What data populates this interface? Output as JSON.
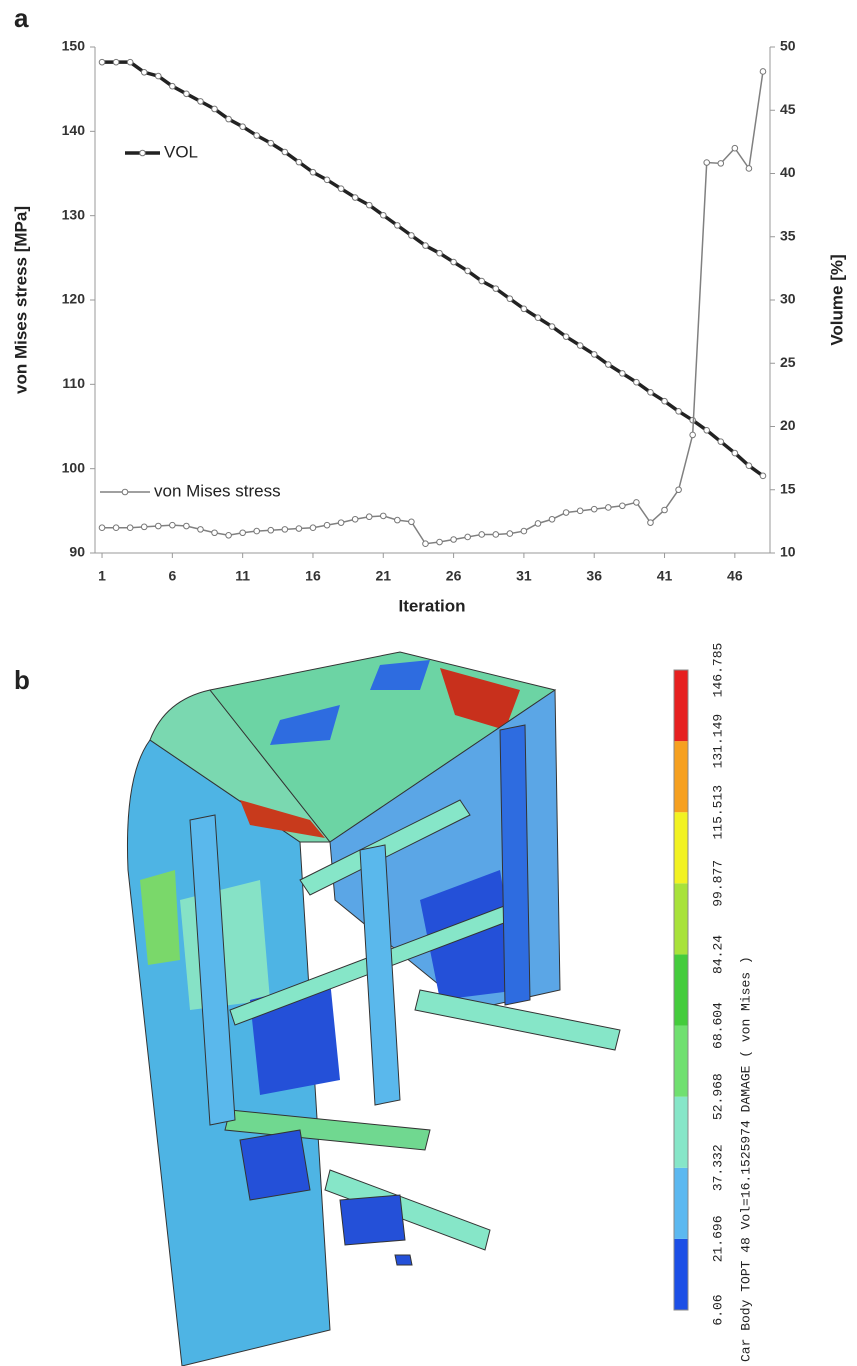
{
  "panel_labels": [
    "a",
    "b"
  ],
  "chart_data": {
    "type": "line",
    "x_label": "Iteration",
    "y_label": "von Mises stress [MPa]",
    "y2_label": "Volume [%]",
    "x": [
      1,
      2,
      3,
      4,
      5,
      6,
      7,
      8,
      9,
      10,
      11,
      12,
      13,
      14,
      15,
      16,
      17,
      18,
      19,
      20,
      21,
      22,
      23,
      24,
      25,
      26,
      27,
      28,
      29,
      30,
      31,
      32,
      33,
      34,
      35,
      36,
      37,
      38,
      39,
      40,
      41,
      42,
      43,
      44,
      45,
      46,
      47,
      48
    ],
    "xlim": [
      0.5,
      48.5
    ],
    "xticks": [
      1,
      6,
      11,
      16,
      21,
      26,
      31,
      36,
      41,
      46
    ],
    "ylim": [
      90,
      150
    ],
    "yticks": [
      90,
      100,
      110,
      120,
      130,
      140,
      150
    ],
    "y2lim": [
      10,
      50
    ],
    "y2ticks": [
      10,
      15,
      20,
      25,
      30,
      35,
      40,
      45,
      50
    ],
    "series": [
      {
        "name": "VOL",
        "color": "#222222",
        "axis": "y2",
        "values": [
          48.8,
          48.8,
          48.8,
          48.0,
          47.7,
          46.9,
          46.3,
          45.7,
          45.1,
          44.3,
          43.7,
          43.0,
          42.4,
          41.7,
          40.9,
          40.1,
          39.5,
          38.8,
          38.1,
          37.5,
          36.7,
          35.9,
          35.1,
          34.3,
          33.7,
          33.0,
          32.3,
          31.5,
          30.9,
          30.1,
          29.3,
          28.6,
          27.9,
          27.1,
          26.4,
          25.7,
          24.9,
          24.2,
          23.5,
          22.7,
          22.0,
          21.2,
          20.5,
          19.7,
          18.8,
          17.9,
          16.9,
          16.1
        ]
      },
      {
        "name": "von Mises stress",
        "color": "#808080",
        "axis": "y",
        "values": [
          93,
          93,
          93,
          93.1,
          93.2,
          93.3,
          93.2,
          92.8,
          92.4,
          92.1,
          92.4,
          92.6,
          92.7,
          92.8,
          92.9,
          93,
          93.3,
          93.6,
          94,
          94.3,
          94.4,
          93.9,
          93.7,
          91.1,
          91.3,
          91.6,
          91.9,
          92.2,
          92.2,
          92.3,
          92.6,
          93.5,
          94,
          94.8,
          95,
          95.2,
          95.4,
          95.6,
          96,
          93.6,
          95.1,
          97.5,
          104,
          136.3,
          136.2,
          138,
          135.6,
          147.1
        ]
      }
    ]
  },
  "legend_bar": {
    "levels": [
      6.06,
      21.696,
      37.332,
      52.968,
      68.604,
      84.24,
      99.877,
      115.513,
      131.149,
      146.785
    ],
    "colors": [
      "#1c4fe6",
      "#5cb8f0",
      "#86e6c8",
      "#70e070",
      "#44cc3c",
      "#a8e23a",
      "#f2f222",
      "#f6a020",
      "#e62020"
    ],
    "caption": "Car Body TOPT 48 Vol=16.1525974 DAMAGE ( von Mises )"
  }
}
